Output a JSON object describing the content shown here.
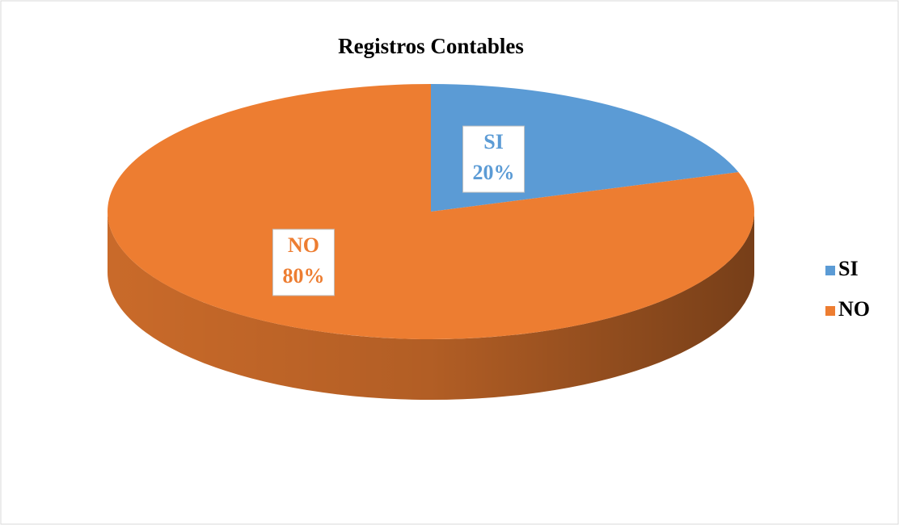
{
  "chart_data": {
    "type": "pie",
    "title": "Registros Contables",
    "categories": [
      "SI",
      "NO"
    ],
    "values": [
      20,
      80
    ],
    "value_labels": [
      "20%",
      "80%"
    ],
    "colors": [
      "#5b9bd5",
      "#ed7d31"
    ],
    "legend": "right"
  }
}
